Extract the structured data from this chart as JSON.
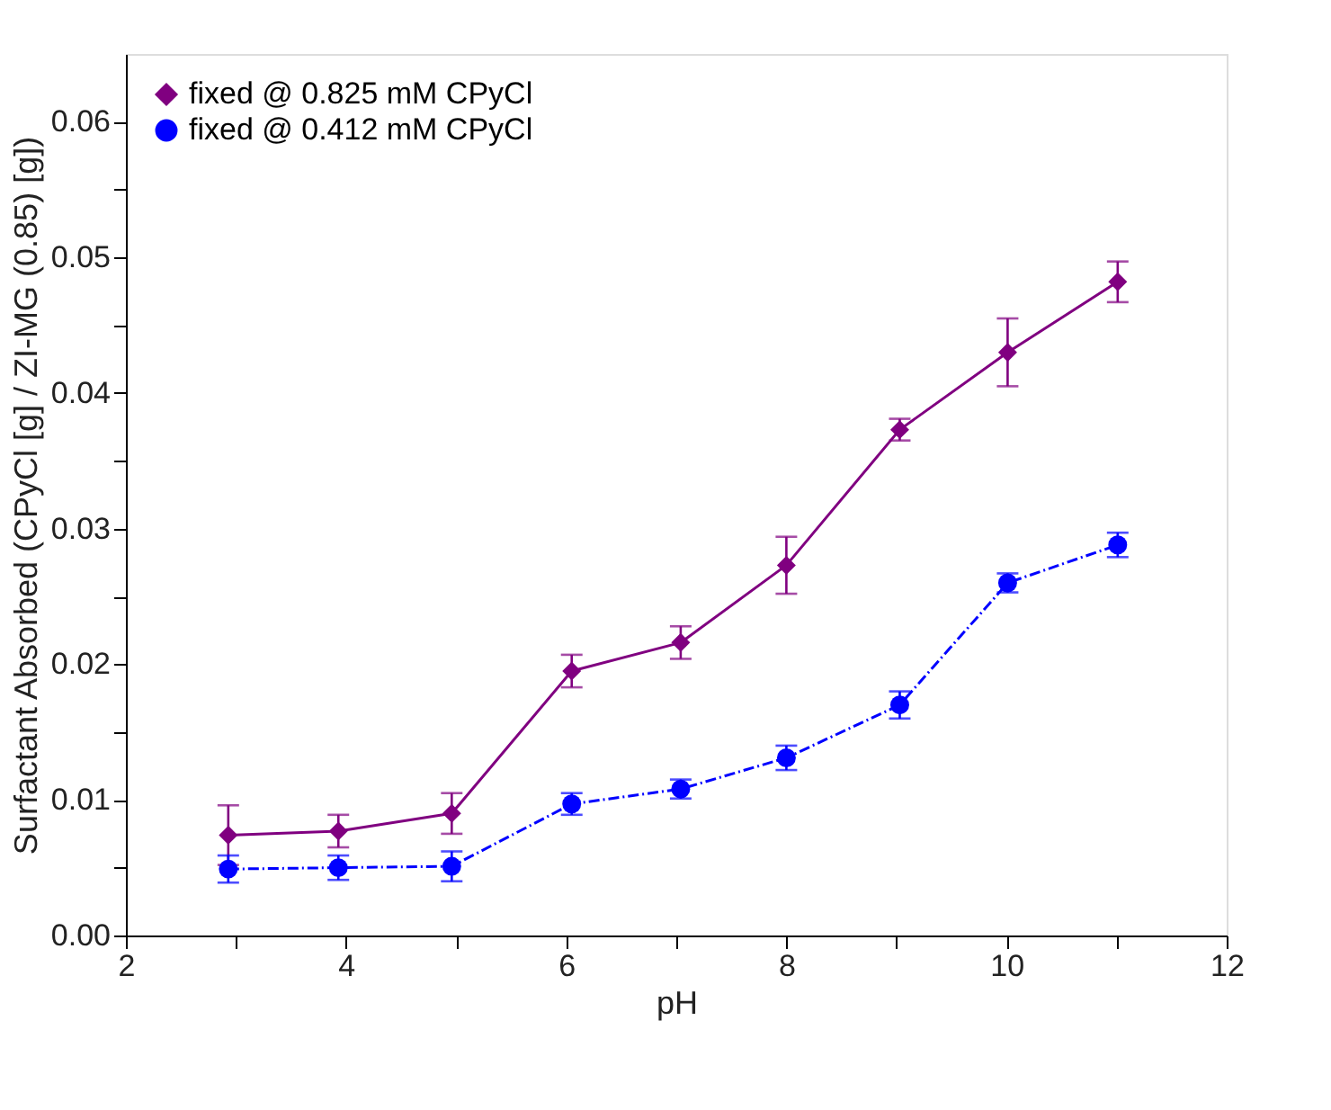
{
  "chart_data": {
    "type": "line",
    "xlabel": "pH",
    "ylabel": "Surfactant Absorbed (CPyCl [g] / ZI-MG (0.85) [g])",
    "xlim": [
      2,
      12
    ],
    "ylim": [
      0,
      0.065
    ],
    "xticks": [
      2,
      {
        "value": 3,
        "label": null
      },
      4,
      {
        "value": 5,
        "label": null
      },
      6,
      {
        "value": 7,
        "label": null
      },
      8,
      {
        "value": 9,
        "label": null
      },
      10,
      {
        "value": 11,
        "label": null
      },
      12
    ],
    "yticks": [
      {
        "value": 0,
        "label": "0.00"
      },
      {
        "value": 0.005,
        "label": null
      },
      0.01,
      {
        "value": 0.015,
        "label": null
      },
      0.02,
      {
        "value": 0.025,
        "label": null
      },
      0.03,
      {
        "value": 0.035,
        "label": null
      },
      0.04,
      {
        "value": 0.045,
        "label": null
      },
      0.05,
      {
        "value": 0.055,
        "label": null
      },
      0.06
    ],
    "grid": false,
    "legend": "top left",
    "series": [
      {
        "name": "fixed @ 0.825 mM CPyCl",
        "color": "#800080",
        "marker": "diamond",
        "line_style": "solid",
        "x": [
          2.93,
          3.93,
          4.96,
          6.05,
          7.04,
          8.0,
          9.03,
          10.01,
          11.01
        ],
        "values": [
          0.0074,
          0.0077,
          0.009,
          0.0195,
          0.0216,
          0.0273,
          0.0373,
          0.043,
          0.0482
        ],
        "errors": [
          0.0022,
          0.0012,
          0.0015,
          0.0012,
          0.0012,
          0.0021,
          0.0008,
          0.0025,
          0.0015
        ]
      },
      {
        "name": "fixed @ 0.412 mM CPyCl",
        "color": "#0000ff",
        "marker": "circle",
        "line_style": "dashed",
        "x": [
          2.93,
          3.93,
          4.96,
          6.05,
          7.04,
          8.0,
          9.03,
          10.01,
          11.01
        ],
        "values": [
          0.0049,
          0.005,
          0.0051,
          0.0097,
          0.0108,
          0.0131,
          0.017,
          0.026,
          0.0288
        ],
        "errors": [
          0.001,
          0.0009,
          0.0011,
          0.0008,
          0.0007,
          0.0009,
          0.001,
          0.0007,
          0.0009
        ]
      }
    ]
  }
}
